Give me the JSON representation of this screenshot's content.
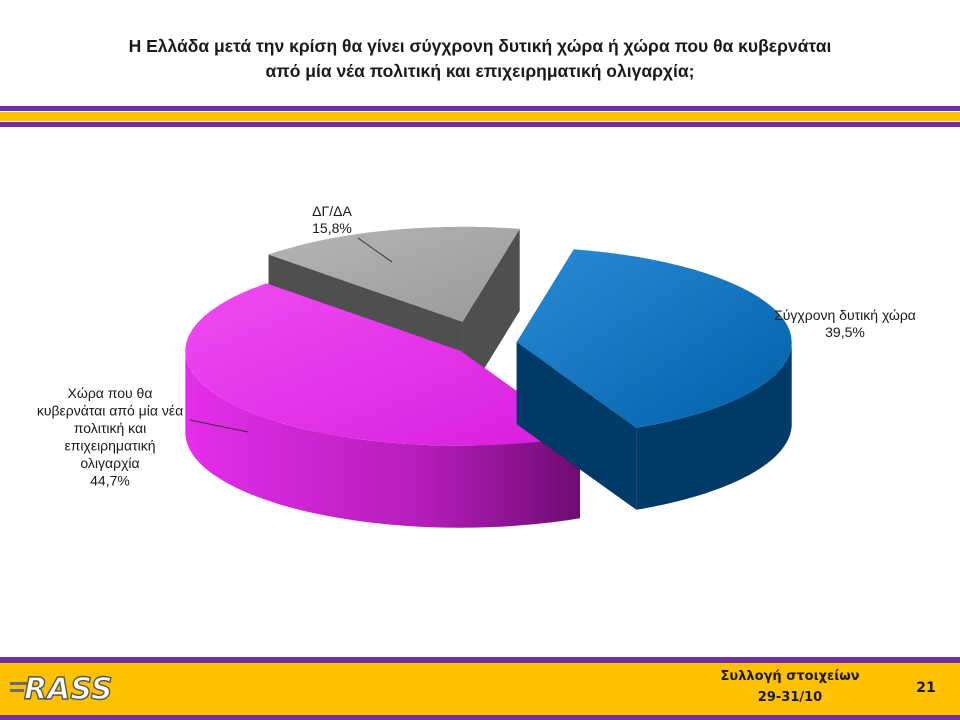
{
  "header": {
    "title_line1": "Η Ελλάδα μετά την κρίση θα γίνει σύγχρονη δυτική χώρα ή  χώρα που θα κυβερνάται",
    "title_line2": "από μία νέα πολιτική και επιχειρηματική ολιγαρχία;"
  },
  "chart_data": {
    "type": "pie",
    "title": "Η Ελλάδα μετά την κρίση θα γίνει σύγχρονη δυτική χώρα ή  χώρα που θα κυβερνάται από μία νέα πολιτική και επιχειρηματική ολιγαρχία;",
    "style": "3d-exploded",
    "slices": [
      {
        "label_lines": [
          "Σύγχρονη δυτική χώρα"
        ],
        "value": 39.5,
        "value_text": "39,5%",
        "color": "#0070C0",
        "side_color": "#003A66"
      },
      {
        "label_lines": [
          "Χώρα που θα",
          "κυβερνάται από μία νέα",
          "πολιτική και",
          "επιχειρηματική",
          "ολιγαρχία"
        ],
        "value": 44.7,
        "value_text": "44,7%",
        "color": "#E930EE",
        "side_color": "#7A0F7E"
      },
      {
        "label_lines": [
          "ΔΓ/ΔΑ"
        ],
        "value": 15.8,
        "value_text": "15,8%",
        "color": "#A6A6A6",
        "side_color": "#4F4F4F"
      }
    ]
  },
  "footer": {
    "logo_text": "RASS",
    "info_line1": "Συλλογή στοιχείων",
    "info_line2": "29-31/10",
    "page_number": "21",
    "band_color": "#FFC000",
    "stripe_color": "#7030A0"
  }
}
